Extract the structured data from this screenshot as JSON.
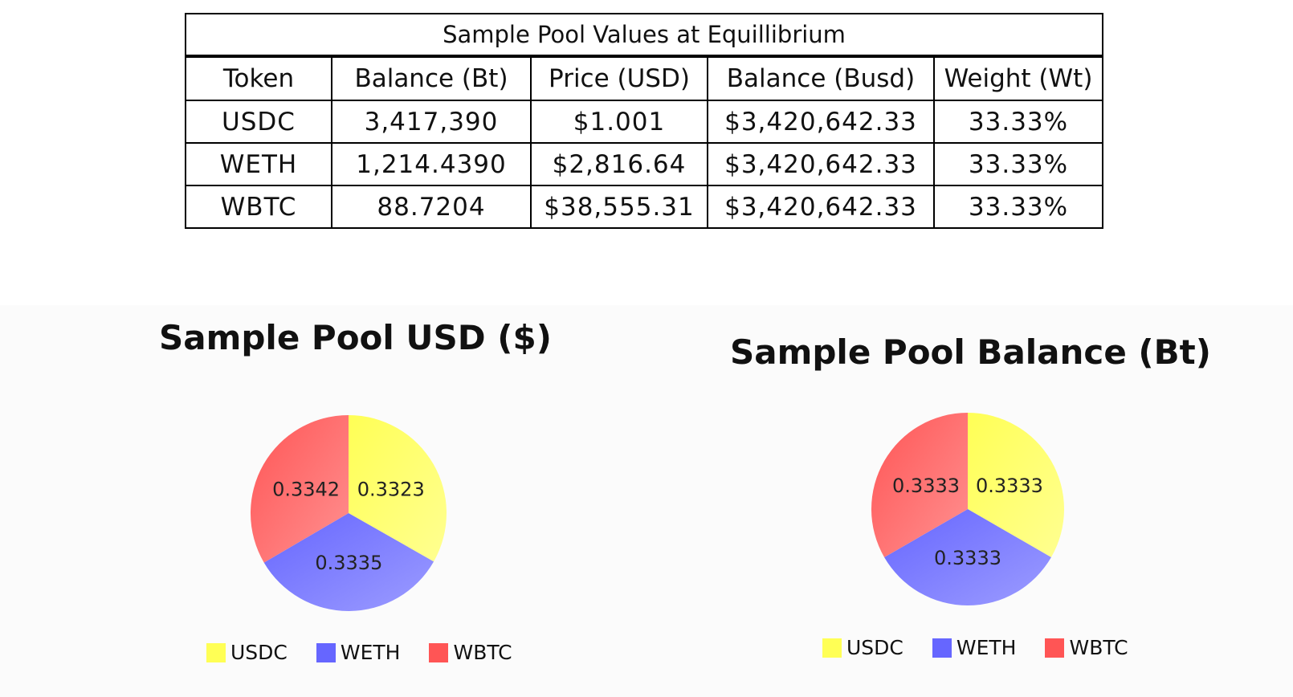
{
  "table": {
    "title": "Sample Pool Values at Equillibrium",
    "headers": [
      "Token",
      "Balance (Bt)",
      "Price (USD)",
      "Balance (Busd)",
      "Weight (Wt)"
    ],
    "rows": [
      [
        "USDC",
        "3,417,390",
        "$1.001",
        "$3,420,642.33",
        "33.33%"
      ],
      [
        "WETH",
        "1,214.4390",
        "$2,816.64",
        "$3,420,642.33",
        "33.33%"
      ],
      [
        "WBTC",
        "88.7204",
        "$38,555.31",
        "$3,420,642.33",
        "33.33%"
      ]
    ]
  },
  "chart_data": [
    {
      "type": "pie",
      "title": "Sample Pool USD ($)",
      "categories": [
        "USDC",
        "WETH",
        "WBTC"
      ],
      "values": [
        0.3323,
        0.3335,
        0.3342
      ],
      "labels": [
        "0.3323",
        "0.3335",
        "0.3342"
      ],
      "colors": [
        "#ffff55",
        "#6666ff",
        "#ff5555"
      ],
      "legend_position": "bottom"
    },
    {
      "type": "pie",
      "title": "Sample Pool Balance (Bt)",
      "categories": [
        "USDC",
        "WETH",
        "WBTC"
      ],
      "values": [
        0.3333,
        0.3333,
        0.3333
      ],
      "labels": [
        "0.3333",
        "0.3333",
        "0.3333"
      ],
      "colors": [
        "#ffff55",
        "#6666ff",
        "#ff5555"
      ],
      "legend_position": "bottom"
    }
  ]
}
